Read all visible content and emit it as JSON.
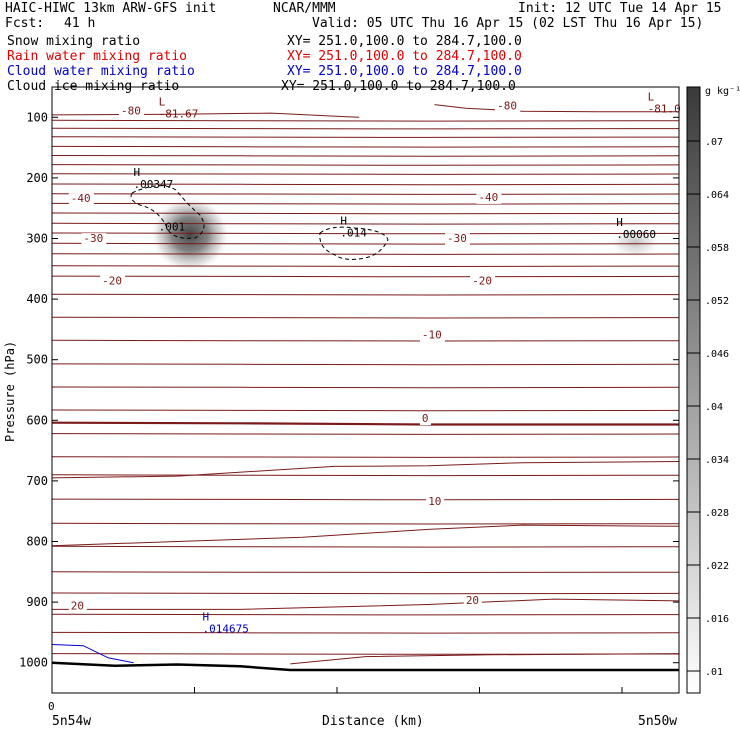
{
  "header": {
    "model": "HAIC-HIWC 13km ARW-GFS init",
    "org": "NCAR/MMM",
    "init": "Init: 12 UTC Tue 14 Apr 15",
    "fcst_label": "Fcst:",
    "fcst_value": "41 h",
    "valid": "Valid: 05 UTC Thu 16 Apr 15 (02 LST Thu 16 Apr 15)",
    "fields": [
      {
        "name": "Snow mixing ratio",
        "xy": "XY= 251.0,100.0 to 284.7,100.0",
        "color": "#000000"
      },
      {
        "name": "Rain water mixing ratio",
        "xy": "XY= 251.0,100.0 to 284.7,100.0",
        "color": "#e00000"
      },
      {
        "name": "Cloud water mixing ratio",
        "xy": "XY= 251.0,100.0 to 284.7,100.0",
        "color": "#0000cc"
      },
      {
        "name": "Cloud ice mixing ratio",
        "xy": "XY= 251.0,100.0 to 284.7,100.0",
        "color": "#000000"
      }
    ]
  },
  "chart_data": {
    "type": "heatmap",
    "ylabel": "Pressure (hPa)",
    "xlabel": "Distance (km)",
    "x_zero_label": "0",
    "x_left_label": "5n54w",
    "x_right_label": "5n50w",
    "ylim": [
      1050,
      50
    ],
    "y_ticks": [
      100,
      200,
      300,
      400,
      500,
      600,
      700,
      800,
      900,
      1000
    ],
    "colorbar": {
      "unit": "g kg⁻¹",
      "ticks": [
        ".01",
        ".016",
        ".022",
        ".028",
        ".034",
        ".04",
        ".046",
        ".052",
        ".058",
        ".064",
        ".07"
      ]
    },
    "temperature_labels": [
      {
        "text": "-80",
        "x": 0.11,
        "p": 95
      },
      {
        "text": "-80",
        "x": 0.71,
        "p": 87
      },
      {
        "text": "-40",
        "x": 0.03,
        "p": 240
      },
      {
        "text": "-40",
        "x": 0.68,
        "p": 238
      },
      {
        "text": "-30",
        "x": 0.05,
        "p": 306
      },
      {
        "text": "-30",
        "x": 0.63,
        "p": 306
      },
      {
        "text": "-20",
        "x": 0.08,
        "p": 376
      },
      {
        "text": "-20",
        "x": 0.67,
        "p": 376
      },
      {
        "text": "-10",
        "x": 0.59,
        "p": 465
      },
      {
        "text": "0",
        "x": 0.59,
        "p": 603
      },
      {
        "text": "10",
        "x": 0.6,
        "p": 740
      },
      {
        "text": "20",
        "x": 0.03,
        "p": 912
      },
      {
        "text": "20",
        "x": 0.66,
        "p": 903
      }
    ],
    "extrema": [
      {
        "type": "L",
        "value": "-81.67",
        "x": 0.17,
        "p": 100,
        "color": "#7a1010"
      },
      {
        "type": "L",
        "value": "-81.0",
        "x": 0.95,
        "p": 92,
        "color": "#7a1010"
      },
      {
        "type": "H",
        "value": ".00347",
        "x": 0.13,
        "p": 217,
        "color": "#000000"
      },
      {
        "type": "",
        "value": ".001",
        "x": 0.17,
        "p": 287,
        "color": "#000000"
      },
      {
        "type": "H",
        "value": ".014",
        "x": 0.46,
        "p": 297,
        "color": "#000000"
      },
      {
        "type": "H",
        "value": ".00060",
        "x": 0.9,
        "p": 299,
        "color": "#000000"
      },
      {
        "type": "H",
        "value": ".014675",
        "x": 0.24,
        "p": 950,
        "color": "#0000cc"
      }
    ],
    "snow_maxima": [
      {
        "x": 0.22,
        "p": 293,
        "peak": 0.07
      },
      {
        "x": 0.93,
        "p": 307,
        "peak": 0.02
      }
    ]
  }
}
